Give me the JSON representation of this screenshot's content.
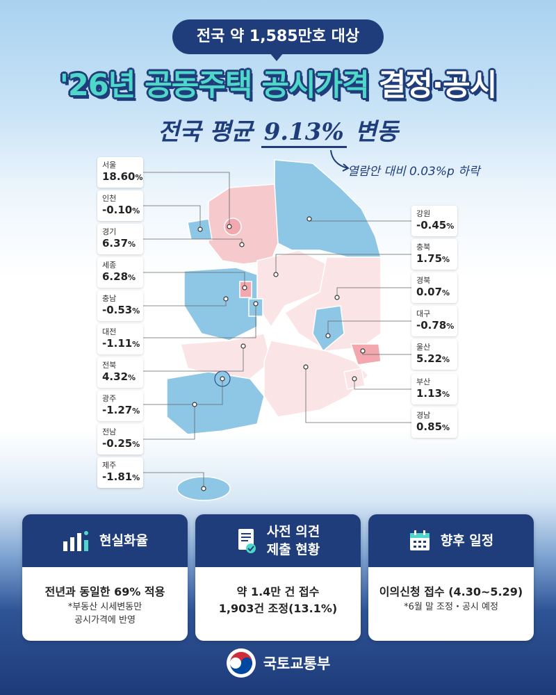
{
  "header": {
    "pill": "전국 약 1,585만호 대상",
    "title_part1": "'26년 공동주택 공시가격",
    "title_part2": "결정·공시",
    "subtitle_pre": "전국 평균",
    "subtitle_pct": "9.13%",
    "subtitle_post": "변동",
    "note": "열람안 대비 0.03%p 하락"
  },
  "colors": {
    "navy": "#1f3d7a",
    "mint": "#4fd8c9",
    "up": "#f6c9cd",
    "up_light": "#fbe4e6",
    "down": "#8ec7e6"
  },
  "regions_left": [
    {
      "name": "서울",
      "value": "18.60",
      "unit": "%"
    },
    {
      "name": "인천",
      "value": "-0.10",
      "unit": "%"
    },
    {
      "name": "경기",
      "value": "6.37",
      "unit": "%"
    },
    {
      "name": "세종",
      "value": "6.28",
      "unit": "%"
    },
    {
      "name": "충남",
      "value": "-0.53",
      "unit": "%"
    },
    {
      "name": "대전",
      "value": "-1.11",
      "unit": "%"
    },
    {
      "name": "전북",
      "value": "4.32",
      "unit": "%"
    },
    {
      "name": "광주",
      "value": "-1.27",
      "unit": "%"
    },
    {
      "name": "전남",
      "value": "-0.25",
      "unit": "%"
    },
    {
      "name": "제주",
      "value": "-1.81",
      "unit": "%"
    }
  ],
  "regions_right": [
    {
      "name": "강원",
      "value": "-0.45",
      "unit": "%"
    },
    {
      "name": "충북",
      "value": "1.75",
      "unit": "%"
    },
    {
      "name": "경북",
      "value": "0.07",
      "unit": "%"
    },
    {
      "name": "대구",
      "value": "-0.78",
      "unit": "%"
    },
    {
      "name": "울산",
      "value": "5.22",
      "unit": "%"
    },
    {
      "name": "부산",
      "value": "1.13",
      "unit": "%"
    },
    {
      "name": "경남",
      "value": "0.85",
      "unit": "%"
    }
  ],
  "cards": [
    {
      "title": "현실화율",
      "icon": "bar-chart-icon",
      "main": "전년과 동일한 69% 적용",
      "sub1": "*부동산 시세변동만",
      "sub2": "공시가격에 반영"
    },
    {
      "title1": "사전 의견",
      "title2": "제출 현황",
      "icon": "document-check-icon",
      "main1": "약 1.4만 건 접수",
      "main2": "1,903건 조정(13.1%)"
    },
    {
      "title": "향후 일정",
      "icon": "calendar-icon",
      "main": "이의신청 접수 (4.30~5.29)",
      "sub": "*6월 말 조정・공시 예정"
    }
  ],
  "footer": {
    "ministry": "국토교통부",
    "logo": "taegeuk-logo"
  }
}
